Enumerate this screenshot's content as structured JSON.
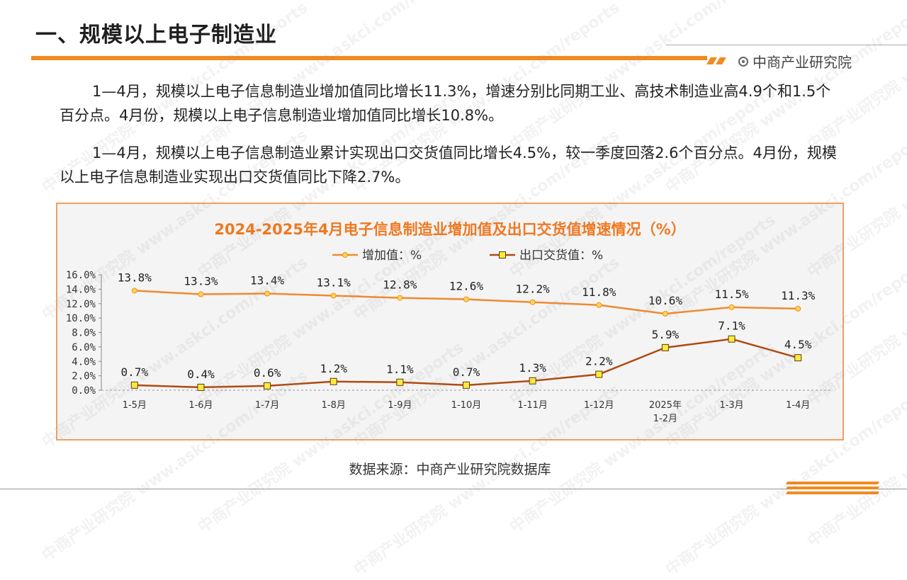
{
  "header": {
    "title": "一、规模以上电子制造业",
    "brand": "中商产业研究院"
  },
  "paragraphs": [
    "1—4月，规模以上电子信息制造业增加值同比增长11.3%，增速分别比同期工业、高技术制造业高4.9个和1.5个百分点。4月份，规模以上电子信息制造业增加值同比增长10.8%。",
    "1—4月，规模以上电子信息制造业累计实现出口交货值同比增长4.5%，较一季度回落2.6个百分点。4月份，规模以上电子信息制造业实现出口交货值同比下降2.7%。"
  ],
  "source": "数据来源：中商产业研究院数据库",
  "watermark": "中商产业研究院 www.askci.com/reports",
  "chart_data": {
    "type": "line",
    "title": "2024-2025年4月电子信息制造业增加值及出口交货值增速情况（%）",
    "categories": [
      "1-5月",
      "1-6月",
      "1-7月",
      "1-8月",
      "1-9月",
      "1-10月",
      "1-11月",
      "1-12月",
      "2025年\n1-2月",
      "1-3月",
      "1-4月"
    ],
    "series": [
      {
        "name": "增加值：%",
        "color": "#f08a30",
        "marker": "circle",
        "values": [
          13.8,
          13.3,
          13.4,
          13.1,
          12.8,
          12.6,
          12.2,
          11.8,
          10.6,
          11.5,
          11.3
        ]
      },
      {
        "name": "出口交货值：%",
        "color": "#b04a10",
        "marker": "square",
        "values": [
          0.7,
          0.4,
          0.6,
          1.2,
          1.1,
          0.7,
          1.3,
          2.2,
          5.9,
          7.1,
          4.5
        ]
      }
    ],
    "ylim": [
      0,
      16
    ],
    "yticks": [
      "0.0%",
      "2.0%",
      "4.0%",
      "6.0%",
      "8.0%",
      "10.0%",
      "12.0%",
      "14.0%",
      "16.0%"
    ],
    "legend": "top-center",
    "grid": false
  }
}
